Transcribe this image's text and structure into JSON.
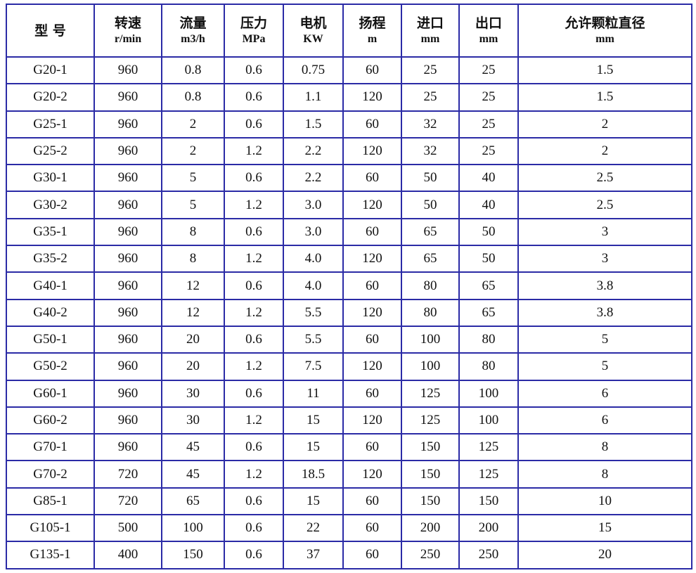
{
  "headers": [
    {
      "cn": "型 号",
      "unit": ""
    },
    {
      "cn": "转速",
      "unit": "r/min"
    },
    {
      "cn": "流量",
      "unit": "m3/h"
    },
    {
      "cn": "压力",
      "unit": "MPa"
    },
    {
      "cn": "电机",
      "unit": "KW"
    },
    {
      "cn": "扬程",
      "unit": "m"
    },
    {
      "cn": "进口",
      "unit": "mm"
    },
    {
      "cn": "出口",
      "unit": "mm"
    },
    {
      "cn": "允许颗粒直径",
      "unit": "mm"
    }
  ],
  "rows": [
    [
      "G20-1",
      "960",
      "0.8",
      "0.6",
      "0.75",
      "60",
      "25",
      "25",
      "1.5"
    ],
    [
      "G20-2",
      "960",
      "0.8",
      "0.6",
      "1.1",
      "120",
      "25",
      "25",
      "1.5"
    ],
    [
      "G25-1",
      "960",
      "2",
      "0.6",
      "1.5",
      "60",
      "32",
      "25",
      "2"
    ],
    [
      "G25-2",
      "960",
      "2",
      "1.2",
      "2.2",
      "120",
      "32",
      "25",
      "2"
    ],
    [
      "G30-1",
      "960",
      "5",
      "0.6",
      "2.2",
      "60",
      "50",
      "40",
      "2.5"
    ],
    [
      "G30-2",
      "960",
      "5",
      "1.2",
      "3.0",
      "120",
      "50",
      "40",
      "2.5"
    ],
    [
      "G35-1",
      "960",
      "8",
      "0.6",
      "3.0",
      "60",
      "65",
      "50",
      "3"
    ],
    [
      "G35-2",
      "960",
      "8",
      "1.2",
      "4.0",
      "120",
      "65",
      "50",
      "3"
    ],
    [
      "G40-1",
      "960",
      "12",
      "0.6",
      "4.0",
      "60",
      "80",
      "65",
      "3.8"
    ],
    [
      "G40-2",
      "960",
      "12",
      "1.2",
      "5.5",
      "120",
      "80",
      "65",
      "3.8"
    ],
    [
      "G50-1",
      "960",
      "20",
      "0.6",
      "5.5",
      "60",
      "100",
      "80",
      "5"
    ],
    [
      "G50-2",
      "960",
      "20",
      "1.2",
      "7.5",
      "120",
      "100",
      "80",
      "5"
    ],
    [
      "G60-1",
      "960",
      "30",
      "0.6",
      "11",
      "60",
      "125",
      "100",
      "6"
    ],
    [
      "G60-2",
      "960",
      "30",
      "1.2",
      "15",
      "120",
      "125",
      "100",
      "6"
    ],
    [
      "G70-1",
      "960",
      "45",
      "0.6",
      "15",
      "60",
      "150",
      "125",
      "8"
    ],
    [
      "G70-2",
      "720",
      "45",
      "1.2",
      "18.5",
      "120",
      "150",
      "125",
      "8"
    ],
    [
      "G85-1",
      "720",
      "65",
      "0.6",
      "15",
      "60",
      "150",
      "150",
      "10"
    ],
    [
      "G105-1",
      "500",
      "100",
      "0.6",
      "22",
      "60",
      "200",
      "200",
      "15"
    ],
    [
      "G135-1",
      "400",
      "150",
      "0.6",
      "37",
      "60",
      "250",
      "250",
      "20"
    ]
  ]
}
